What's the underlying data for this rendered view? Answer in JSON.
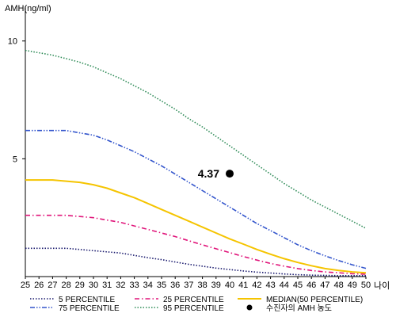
{
  "chart_data": {
    "type": "line",
    "ylabel": "AMH(ng/ml)",
    "xlabel": "나이",
    "x": [
      25,
      26,
      27,
      28,
      29,
      30,
      31,
      32,
      33,
      34,
      35,
      36,
      37,
      38,
      39,
      40,
      41,
      42,
      43,
      44,
      45,
      46,
      47,
      48,
      49,
      50
    ],
    "xlim": [
      25,
      50
    ],
    "ylim": [
      0,
      11
    ],
    "yticks": [
      5,
      10
    ],
    "grid": false,
    "legend_position": "bottom",
    "series": [
      {
        "name": "5 PERCENTILE",
        "color": "#1a1a6e",
        "dash": "dotted",
        "values": [
          1.2,
          1.2,
          1.2,
          1.2,
          1.15,
          1.1,
          1.05,
          1.0,
          0.9,
          0.8,
          0.72,
          0.62,
          0.52,
          0.44,
          0.36,
          0.3,
          0.24,
          0.19,
          0.15,
          0.11,
          0.08,
          0.06,
          0.05,
          0.04,
          0.04,
          0.04
        ]
      },
      {
        "name": "25 PERCENTILE",
        "color": "#e0157a",
        "dash": "dashdot",
        "values": [
          2.6,
          2.6,
          2.6,
          2.6,
          2.55,
          2.5,
          2.4,
          2.3,
          2.15,
          2.0,
          1.85,
          1.7,
          1.52,
          1.35,
          1.18,
          1.02,
          0.85,
          0.7,
          0.56,
          0.44,
          0.34,
          0.26,
          0.2,
          0.16,
          0.12,
          0.1
        ]
      },
      {
        "name": "MEDIAN(50 PERCENTILE)",
        "color": "#f5c400",
        "dash": "solid",
        "values": [
          4.1,
          4.1,
          4.1,
          4.05,
          4.0,
          3.9,
          3.75,
          3.55,
          3.35,
          3.1,
          2.85,
          2.6,
          2.35,
          2.1,
          1.85,
          1.6,
          1.38,
          1.15,
          0.95,
          0.76,
          0.6,
          0.46,
          0.34,
          0.26,
          0.2,
          0.16
        ]
      },
      {
        "name": "75 PERCENTILE",
        "color": "#3355cc",
        "dash": "dashdotdot",
        "values": [
          6.2,
          6.2,
          6.2,
          6.2,
          6.1,
          6.0,
          5.8,
          5.55,
          5.3,
          5.0,
          4.7,
          4.35,
          4.0,
          3.65,
          3.3,
          2.95,
          2.6,
          2.25,
          1.95,
          1.65,
          1.35,
          1.1,
          0.88,
          0.68,
          0.5,
          0.35
        ]
      },
      {
        "name": "95 PERCENTILE",
        "color": "#2e8b57",
        "dash": "dotted",
        "values": [
          9.6,
          9.5,
          9.4,
          9.25,
          9.1,
          8.9,
          8.65,
          8.4,
          8.1,
          7.8,
          7.45,
          7.1,
          6.7,
          6.35,
          5.95,
          5.55,
          5.15,
          4.75,
          4.35,
          3.95,
          3.6,
          3.25,
          2.95,
          2.65,
          2.35,
          2.05
        ]
      }
    ],
    "marker": {
      "label": "수진자의 AMH 농도",
      "x": 40,
      "y": 4.37,
      "text": "4.37",
      "color": "#000000"
    },
    "legend_order": [
      "5 PERCENTILE",
      "25 PERCENTILE",
      "MEDIAN(50 PERCENTILE)",
      "75 PERCENTILE",
      "95 PERCENTILE",
      "수진자의 AMH 농도"
    ]
  }
}
